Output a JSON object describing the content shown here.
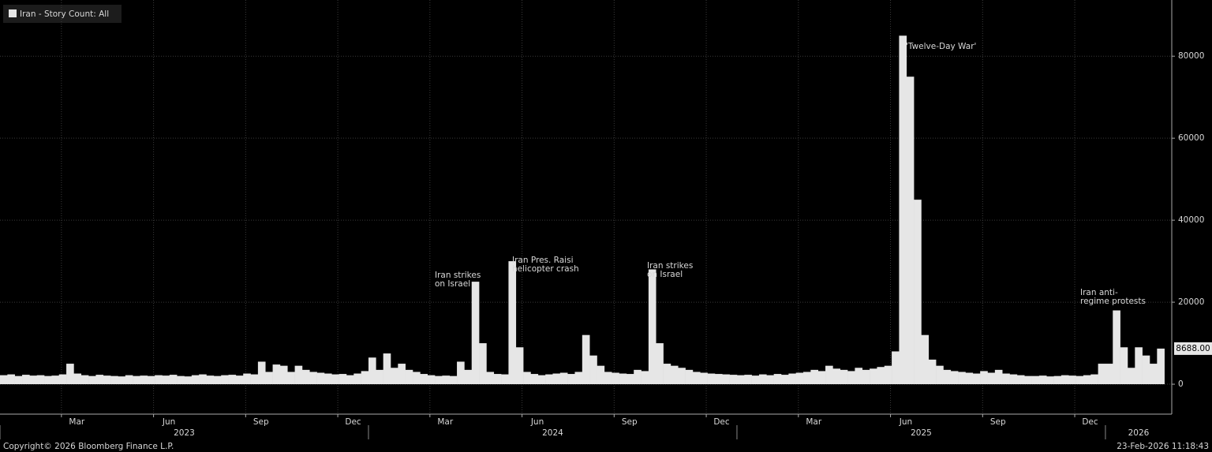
{
  "chart_data": {
    "type": "bar",
    "series": [
      {
        "name": "Iran - Story Count: All",
        "color": "#e6e6e6",
        "x": [
          2023.0,
          2023.02,
          2023.04,
          2023.06,
          2023.08,
          2023.1,
          2023.12,
          2023.14,
          2023.16,
          2023.18,
          2023.2,
          2023.22,
          2023.24,
          2023.26,
          2023.28,
          2023.3,
          2023.32,
          2023.34,
          2023.36,
          2023.38,
          2023.4,
          2023.42,
          2023.44,
          2023.46,
          2023.48,
          2023.5,
          2023.52,
          2023.54,
          2023.56,
          2023.58,
          2023.6,
          2023.62,
          2023.64,
          2023.66,
          2023.68,
          2023.7,
          2023.72,
          2023.74,
          2023.76,
          2023.78,
          2023.8,
          2023.82,
          2023.84,
          2023.86,
          2023.88,
          2023.9,
          2023.92,
          2023.94,
          2023.96,
          2023.98,
          2024.0,
          2024.02,
          2024.04,
          2024.06,
          2024.08,
          2024.1,
          2024.12,
          2024.14,
          2024.16,
          2024.18,
          2024.2,
          2024.22,
          2024.24,
          2024.26,
          2024.28,
          2024.3,
          2024.32,
          2024.34,
          2024.36,
          2024.38,
          2024.4,
          2024.42,
          2024.44,
          2024.46,
          2024.48,
          2024.5,
          2024.52,
          2024.54,
          2024.56,
          2024.58,
          2024.6,
          2024.62,
          2024.64,
          2024.66,
          2024.68,
          2024.7,
          2024.72,
          2024.74,
          2024.76,
          2024.78,
          2024.8,
          2024.82,
          2024.84,
          2024.86,
          2024.88,
          2024.9,
          2024.92,
          2024.94,
          2024.96,
          2024.98,
          2025.0,
          2025.02,
          2025.04,
          2025.06,
          2025.08,
          2025.1,
          2025.12,
          2025.14,
          2025.16,
          2025.18,
          2025.2,
          2025.22,
          2025.24,
          2025.26,
          2025.28,
          2025.3,
          2025.32,
          2025.34,
          2025.36,
          2025.38,
          2025.4,
          2025.42,
          2025.44,
          2025.46,
          2025.48,
          2025.5,
          2025.52,
          2025.54,
          2025.56,
          2025.58,
          2025.6,
          2025.62,
          2025.64,
          2025.66,
          2025.68,
          2025.7,
          2025.72,
          2025.74,
          2025.76,
          2025.78,
          2025.8,
          2025.82,
          2025.84,
          2025.86,
          2025.88,
          2025.9,
          2025.92,
          2025.94,
          2025.96,
          2025.98,
          2026.0,
          2026.02,
          2026.04,
          2026.06,
          2026.08,
          2026.1,
          2026.12,
          2026.14
        ],
        "values": [
          2200,
          2400,
          2000,
          2300,
          2100,
          2200,
          2000,
          2100,
          2400,
          5000,
          2600,
          2200,
          2000,
          2300,
          2100,
          2000,
          1900,
          2200,
          2000,
          2100,
          2000,
          2200,
          2100,
          2300,
          2000,
          1900,
          2200,
          2400,
          2100,
          2000,
          2200,
          2300,
          2100,
          2600,
          2400,
          5500,
          3000,
          4800,
          4500,
          3000,
          4500,
          3500,
          3000,
          2800,
          2600,
          2400,
          2500,
          2200,
          2600,
          3200,
          6500,
          3500,
          7500,
          4000,
          5000,
          3500,
          3000,
          2500,
          2200,
          2000,
          2100,
          2000,
          5500,
          3500,
          25000,
          10000,
          3000,
          2500,
          2400,
          30000,
          9000,
          3000,
          2500,
          2200,
          2400,
          2600,
          2800,
          2500,
          3000,
          12000,
          7000,
          4500,
          3000,
          2800,
          2600,
          2500,
          3500,
          3200,
          28000,
          10000,
          5000,
          4500,
          4000,
          3500,
          3000,
          2800,
          2600,
          2500,
          2400,
          2300,
          2200,
          2300,
          2100,
          2400,
          2200,
          2500,
          2300,
          2600,
          2800,
          3000,
          3500,
          3200,
          4500,
          3800,
          3500,
          3200,
          4000,
          3500,
          3800,
          4200,
          4500,
          8000,
          85000,
          75000,
          45000,
          12000,
          6000,
          4500,
          3500,
          3200,
          3000,
          2800,
          2600,
          3200,
          2800,
          3500,
          2600,
          2400,
          2200,
          2000,
          2000,
          2100,
          1900,
          2000,
          2200,
          2100,
          2000,
          2200,
          2400,
          5000,
          5000,
          18000,
          9000,
          4000,
          9000,
          7000,
          5000,
          8688
        ]
      }
    ],
    "last_value_label": "8688.00",
    "xlim": [
      2023.0,
      2026.18
    ],
    "ylim": [
      -7300,
      93700
    ],
    "yticks": [
      0,
      20000,
      40000,
      60000,
      80000
    ],
    "xticks": [
      {
        "value": 2023.1667,
        "label": "Mar"
      },
      {
        "value": 2023.4167,
        "label": "Jun"
      },
      {
        "value": 2023.6667,
        "label": "Sep"
      },
      {
        "value": 2023.9167,
        "label": "Dec"
      },
      {
        "value": 2024.1667,
        "label": "Mar"
      },
      {
        "value": 2024.4167,
        "label": "Jun"
      },
      {
        "value": 2024.6667,
        "label": "Sep"
      },
      {
        "value": 2024.9167,
        "label": "Dec"
      },
      {
        "value": 2025.1667,
        "label": "Mar"
      },
      {
        "value": 2025.4167,
        "label": "Jun"
      },
      {
        "value": 2025.6667,
        "label": "Sep"
      },
      {
        "value": 2025.9167,
        "label": "Dec"
      }
    ],
    "year_ticks": [
      2023,
      2024,
      2025,
      2026
    ],
    "annotations": [
      {
        "lines": [
          "Iran strikes",
          "on Israel"
        ]
      },
      {
        "lines": [
          "Iran Pres. Raisi",
          "helicopter crash"
        ]
      },
      {
        "lines": [
          "Iran strikes",
          "on Israel"
        ]
      },
      {
        "lines": [
          "'Twelve-Day War'"
        ]
      },
      {
        "lines": [
          "Iran anti-",
          "regime protests"
        ]
      }
    ],
    "grid": true,
    "footer": {
      "left": "Copyright© 2026 Bloomberg Finance L.P.",
      "right": "23-Feb-2026 11:18:43"
    }
  }
}
